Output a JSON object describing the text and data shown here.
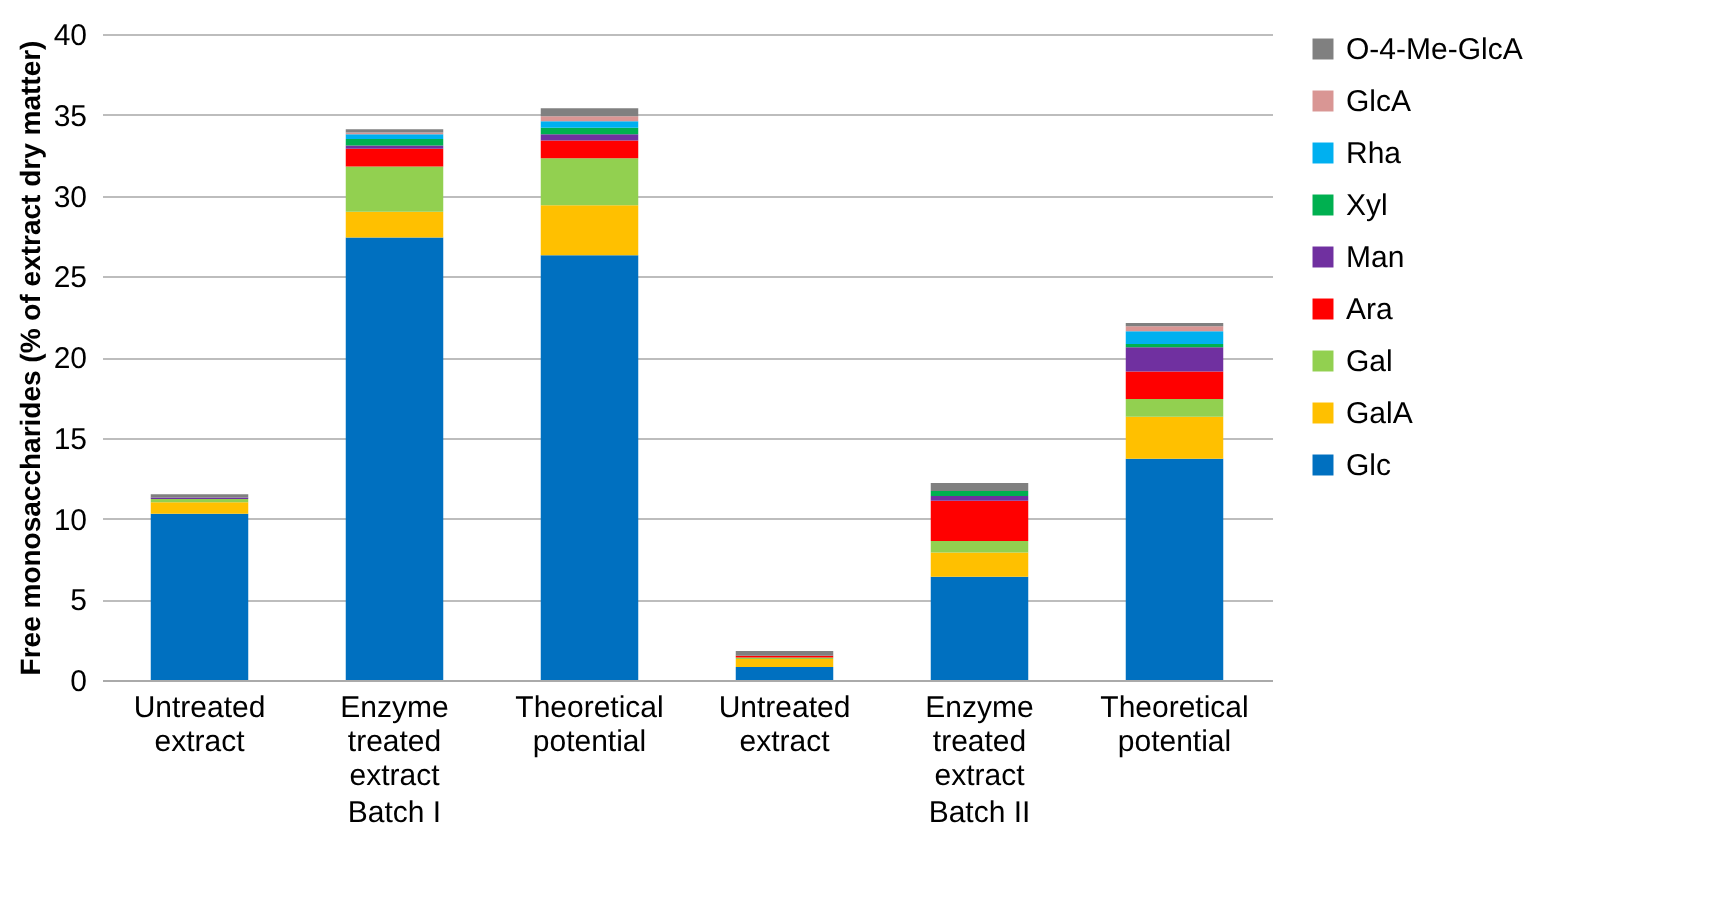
{
  "chart_data": {
    "type": "bar",
    "stacked": true,
    "ylabel": "Free monosaccharides (% of extract dry matter)",
    "categories": [
      "Untreated extract",
      "Enzyme treated extract",
      "Theoretical potential",
      "Untreated extract",
      "Enzyme treated extract",
      "Theoretical potential"
    ],
    "series": [
      {
        "name": "Glc",
        "color": "#0070c0",
        "values": [
          10.3,
          27.4,
          26.3,
          0.8,
          6.4,
          13.7
        ]
      },
      {
        "name": "GalA",
        "color": "#ffc000",
        "values": [
          0.7,
          1.6,
          3.1,
          0.5,
          1.5,
          2.6
        ]
      },
      {
        "name": "Gal",
        "color": "#92d050",
        "values": [
          0.2,
          2.8,
          2.9,
          0.1,
          0.7,
          1.1
        ]
      },
      {
        "name": "Ara",
        "color": "#ff0000",
        "values": [
          0,
          1.1,
          1.1,
          0.1,
          2.5,
          1.7
        ]
      },
      {
        "name": "Man",
        "color": "#7030a0",
        "values": [
          0.1,
          0.2,
          0.4,
          0,
          0.3,
          1.5
        ]
      },
      {
        "name": "Xyl",
        "color": "#00b050",
        "values": [
          0,
          0.4,
          0.4,
          0,
          0.3,
          0.2
        ]
      },
      {
        "name": "Rha",
        "color": "#00b0f0",
        "values": [
          0,
          0.3,
          0.4,
          0,
          0,
          0.8
        ]
      },
      {
        "name": "GlcA",
        "color": "#d99694",
        "values": [
          0,
          0.1,
          0.3,
          0,
          0,
          0.3
        ]
      },
      {
        "name": "O-4-Me-GlcA",
        "color": "#808080",
        "values": [
          0.2,
          0.2,
          0.5,
          0.3,
          0.5,
          0.2
        ]
      }
    ],
    "ylim": [
      0,
      40
    ],
    "yticks": [
      0,
      5,
      10,
      15,
      20,
      25,
      30,
      35,
      40
    ],
    "grid": "y",
    "legend": "right",
    "annotations": [
      "Batch I",
      "Batch II"
    ]
  }
}
